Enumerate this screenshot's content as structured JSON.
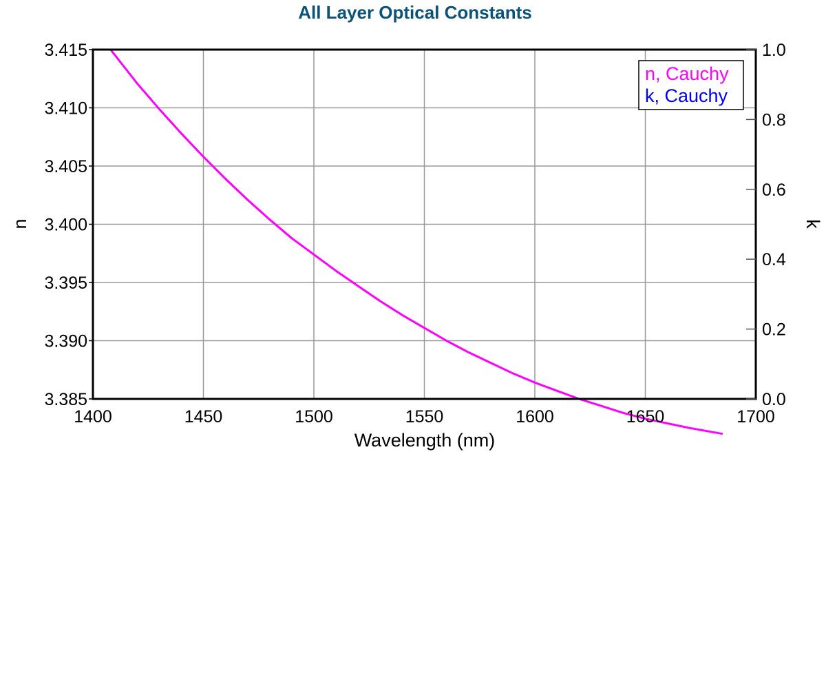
{
  "chart_data": {
    "type": "line",
    "title": "All Layer Optical Constants",
    "title_color": "#0b5278",
    "xlabel": "Wavelength (nm)",
    "ylabel_left": "n",
    "ylabel_right": "k",
    "xlim": [
      1400,
      1700
    ],
    "ylim_left": [
      3.385,
      3.415
    ],
    "ylim_right": [
      0.0,
      1.0
    ],
    "x_ticks": [
      "1400",
      "1450",
      "1500",
      "1550",
      "1600",
      "1650",
      "1700"
    ],
    "y_ticks_left": [
      "3.385",
      "3.390",
      "3.395",
      "3.400",
      "3.405",
      "3.410",
      "3.415"
    ],
    "y_ticks_right": [
      "0.0",
      "0.2",
      "0.4",
      "0.6",
      "0.8",
      "1.0"
    ],
    "grid": true,
    "legend_position": "top-right",
    "series": [
      {
        "name": "n, Cauchy",
        "axis": "left",
        "color": "#ff00ff",
        "x": [
          1408,
          1420,
          1430,
          1440,
          1450,
          1460,
          1470,
          1480,
          1490,
          1500,
          1510,
          1520,
          1530,
          1540,
          1550,
          1560,
          1570,
          1580,
          1590,
          1600,
          1610,
          1620,
          1630,
          1640,
          1650,
          1660,
          1670,
          1685
        ],
        "y": [
          3.415,
          3.4121,
          3.4099,
          3.4078,
          3.4058,
          3.4039,
          3.4021,
          3.4004,
          3.3988,
          3.3974,
          3.396,
          3.3947,
          3.3934,
          3.3922,
          3.3911,
          3.39,
          3.389,
          3.3881,
          3.3872,
          3.3864,
          3.3857,
          3.385,
          3.3844,
          3.3838,
          3.3833,
          3.3829,
          3.3825,
          3.382
        ]
      },
      {
        "name": "k, Cauchy",
        "axis": "right",
        "color": "#0000ff",
        "x": [
          1408,
          1685
        ],
        "y": [
          0.0,
          0.0
        ]
      }
    ]
  }
}
